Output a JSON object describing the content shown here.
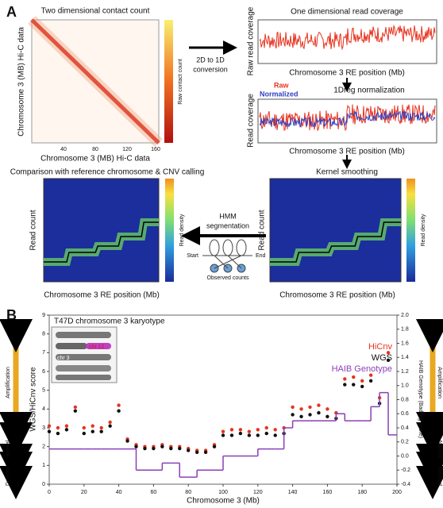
{
  "panel_a": {
    "label": "A",
    "contact_map": {
      "title": "Two dimensional contact count",
      "y_label": "Chromosome 3 (MB) Hi-C data",
      "x_label": "Chromosome 3 (MB) Hi-C data",
      "colorbar_label": "Raw contact count",
      "x_ticks": [
        "40",
        "80",
        "120",
        "160"
      ]
    },
    "conversion": [
      "2D to 1D",
      "conversion"
    ],
    "coverage": {
      "title": "One dimensional read coverage",
      "y_label": "Raw read coverage",
      "x_label": "Chromosome 3 RE position (Mb)"
    },
    "normalization": {
      "title": "1Dreg normalization",
      "legend": [
        "Raw",
        "Normalized"
      ],
      "y_label": "Read coverage",
      "x_label": "Chromosome 3 RE position (Mb)"
    },
    "smoothing": {
      "title": "Kernel smoothing",
      "y_label": "Read count",
      "x_label": "Chromosome 3 RE position (Mb)",
      "colorbar_label": "Read density"
    },
    "hmm": {
      "label": [
        "HMM",
        "segmentation"
      ],
      "start": "Start",
      "end": "End",
      "observed": "Observed counts"
    },
    "cnv": {
      "title": "Comparison with reference chromosome & CNV calling",
      "y_label": "Read count",
      "x_label": "Chromosome 3 RE position (Mb)",
      "colorbar_label": "Read density"
    }
  },
  "panel_b_label": "B",
  "side_labels": [
    "Amplification",
    "Normal",
    "Deleted"
  ],
  "inset_labels": [
    "chr 12",
    "chr 3"
  ],
  "chart_data": {
    "type": "scatter",
    "title": "T47D chromosome 3 karyotype",
    "x_label": "Chromosome 3 (Mb)",
    "y_label": "WGS/HiCnv score",
    "y2_label": "HAIB Genotype (Badseg score)",
    "x": [
      0,
      5,
      10,
      15,
      20,
      25,
      30,
      35,
      40,
      45,
      50,
      55,
      60,
      65,
      70,
      75,
      80,
      85,
      90,
      95,
      100,
      105,
      110,
      115,
      120,
      125,
      130,
      135,
      140,
      145,
      150,
      155,
      160,
      165,
      170,
      175,
      180,
      185,
      190,
      195
    ],
    "series": [
      {
        "name": "HiCnv",
        "color": "#e8321e",
        "values": [
          3.1,
          3.0,
          3.1,
          4.1,
          3.0,
          3.1,
          3.0,
          3.3,
          4.2,
          2.4,
          2.1,
          2.0,
          2.0,
          2.1,
          2.0,
          2.0,
          1.9,
          1.8,
          1.8,
          2.1,
          2.8,
          2.9,
          2.9,
          2.8,
          2.9,
          3.0,
          2.9,
          3.0,
          4.1,
          4.0,
          4.1,
          4.2,
          4.0,
          3.8,
          5.6,
          5.7,
          5.5,
          5.8,
          4.6,
          7.0
        ]
      },
      {
        "name": "WGS",
        "color": "#111111",
        "values": [
          2.8,
          2.7,
          2.9,
          3.9,
          2.7,
          2.8,
          2.8,
          3.1,
          3.9,
          2.3,
          2.0,
          1.9,
          1.9,
          2.0,
          1.9,
          1.9,
          1.8,
          1.7,
          1.7,
          2.0,
          2.6,
          2.6,
          2.7,
          2.6,
          2.6,
          2.7,
          2.6,
          2.7,
          3.7,
          3.6,
          3.7,
          3.8,
          3.6,
          3.5,
          5.3,
          5.3,
          5.2,
          5.5,
          4.3,
          6.6
        ]
      },
      {
        "name": "HAIB Genotype",
        "color": "#8a3fb5",
        "axis": "y2",
        "values": [
          0.1,
          0.1,
          0.1,
          0.1,
          0.1,
          0.1,
          0.1,
          0.1,
          0.1,
          0.1,
          -0.2,
          -0.2,
          -0.2,
          -0.1,
          -0.1,
          -0.3,
          -0.3,
          -0.2,
          -0.2,
          -0.2,
          0.0,
          0.0,
          0.0,
          0.0,
          0.1,
          0.1,
          0.1,
          0.4,
          0.5,
          0.5,
          0.5,
          0.5,
          0.5,
          0.6,
          0.5,
          0.5,
          0.5,
          0.7,
          0.9,
          0.3
        ]
      }
    ],
    "xlim": [
      0,
      200
    ],
    "xticks": [
      0,
      20,
      40,
      60,
      80,
      100,
      120,
      140,
      160,
      180,
      200
    ],
    "ylim": [
      0,
      9
    ],
    "yticks": [
      0,
      1,
      2,
      3,
      4,
      5,
      6,
      7,
      8,
      9
    ],
    "y2lim": [
      -0.4,
      2.0
    ],
    "y2ticks": [
      -0.4,
      -0.2,
      {
        "value": 0,
        "label": "0.0"
      },
      0.2,
      0.4,
      0.6,
      0.8,
      {
        "value": 1,
        "label": "1.0"
      },
      1.2,
      1.4,
      1.6,
      1.8,
      {
        "value": 2,
        "label": "2.0"
      }
    ],
    "grid": false,
    "legend": "upper right"
  }
}
